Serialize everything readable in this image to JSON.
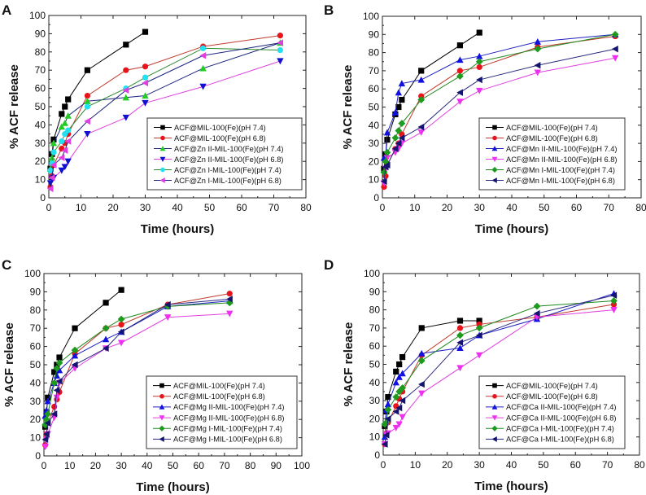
{
  "chart_data": [
    {
      "type": "line",
      "panel": "A",
      "xlabel": "Time (hours)",
      "ylabel": "% ACF release",
      "xlim": [
        0,
        80
      ],
      "ylim": [
        0,
        100
      ],
      "xticks": [
        0,
        10,
        20,
        30,
        40,
        50,
        60,
        70,
        80
      ],
      "yticks": [
        0,
        10,
        20,
        30,
        40,
        50,
        60,
        70,
        80,
        90,
        100
      ],
      "legend_position": "bottom-right",
      "series": [
        {
          "name": "ACF@MIL-100(Fe)(pH 7.4)",
          "marker": "square",
          "marker_color": "#000000",
          "line_color": "#000000",
          "x": [
            0.5,
            1,
            1.5,
            4,
            5,
            6,
            12,
            24,
            30
          ],
          "y": [
            16,
            24,
            32,
            46,
            50,
            54,
            70,
            84,
            91
          ]
        },
        {
          "name": "ACF@MIL-100(Fe)(pH 6.8)",
          "marker": "circle",
          "marker_color": "#e8141c",
          "line_color": "#c0392b",
          "x": [
            0.5,
            1,
            1.5,
            4,
            5,
            6,
            12,
            24,
            30,
            48,
            72
          ],
          "y": [
            6,
            12,
            18,
            27,
            30,
            35,
            56,
            70,
            72,
            83,
            89
          ]
        },
        {
          "name": "ACF@Zn II-MIL-100(Fe)(pH 7.4)",
          "marker": "triangle-up",
          "marker_color": "#22cc22",
          "line_color": "#1a237e",
          "x": [
            0.5,
            1,
            1.5,
            4,
            5,
            6,
            12,
            24,
            30,
            48,
            72
          ],
          "y": [
            16,
            22,
            30,
            39,
            41,
            45,
            53,
            55,
            56,
            71,
            85
          ]
        },
        {
          "name": "ACF@Zn II-MIL-100(Fe)(pH 6.8)",
          "marker": "triangle-down",
          "marker_color": "#1010d0",
          "line_color": "#e040e0",
          "x": [
            0.5,
            1,
            1.5,
            4,
            5,
            6,
            12,
            24,
            30,
            48,
            72
          ],
          "y": [
            8,
            10,
            11,
            15,
            17,
            20,
            35,
            44,
            52,
            61,
            75
          ]
        },
        {
          "name": "ACF@Zn I-MIL-100(Fe)(pH 7.4)",
          "marker": "circle",
          "marker_color": "#22e0f0",
          "line_color": "#2e8b2e",
          "x": [
            0.5,
            1,
            1.5,
            4,
            5,
            6,
            12,
            24,
            30,
            48,
            72
          ],
          "y": [
            15,
            19,
            25,
            31,
            35,
            37,
            50,
            60,
            66,
            82,
            81
          ]
        },
        {
          "name": "ACF@Zn I-MIL-100(Fe)(pH 6.8)",
          "marker": "triangle-left",
          "marker_color": "#e040e0",
          "line_color": "#1a237e",
          "x": [
            0.5,
            1,
            1.5,
            4,
            5,
            6,
            12,
            24,
            30,
            48,
            72
          ],
          "y": [
            5,
            11,
            18,
            22,
            26,
            31,
            42,
            59,
            63,
            78,
            85
          ]
        }
      ]
    },
    {
      "type": "line",
      "panel": "B",
      "xlabel": "Time (hours)",
      "ylabel": "% ACF release",
      "xlim": [
        0,
        80
      ],
      "ylim": [
        0,
        100
      ],
      "xticks": [
        0,
        10,
        20,
        30,
        40,
        50,
        60,
        70,
        80
      ],
      "yticks": [
        0,
        10,
        20,
        30,
        40,
        50,
        60,
        70,
        80,
        90,
        100
      ],
      "legend_position": "bottom-right",
      "series": [
        {
          "name": "ACF@MIL-100(Fe)(pH 7.4)",
          "marker": "square",
          "marker_color": "#000000",
          "line_color": "#000000",
          "x": [
            0.5,
            1,
            1.5,
            4,
            5,
            6,
            12,
            24,
            30
          ],
          "y": [
            16,
            24,
            32,
            46,
            50,
            54,
            70,
            84,
            91
          ]
        },
        {
          "name": "ACF@MIL-100(Fe)(pH 6.8)",
          "marker": "circle",
          "marker_color": "#e8141c",
          "line_color": "#c0392b",
          "x": [
            0.5,
            1,
            1.5,
            4,
            5,
            6,
            12,
            24,
            30,
            48,
            72
          ],
          "y": [
            6,
            12,
            18,
            27,
            30,
            35,
            56,
            70,
            72,
            83,
            89
          ]
        },
        {
          "name": "ACF@Mn II-MIL-100(Fe)(pH 7.4)",
          "marker": "triangle-up",
          "marker_color": "#1010e0",
          "line_color": "#2020c0",
          "x": [
            0.5,
            1,
            1.5,
            4,
            5,
            6,
            12,
            24,
            30,
            48,
            72
          ],
          "y": [
            22,
            23,
            36,
            47,
            58,
            63,
            65,
            76,
            78,
            86,
            90
          ]
        },
        {
          "name": "ACF@Mn II-MIL-100(Fe)(pH 6.8)",
          "marker": "triangle-down",
          "marker_color": "#f030f0",
          "line_color": "#e040e0",
          "x": [
            0.5,
            1,
            1.5,
            4,
            5,
            6,
            12,
            24,
            30,
            48,
            72
          ],
          "y": [
            8,
            16,
            22,
            25,
            27,
            30,
            36,
            53,
            59,
            69,
            77
          ]
        },
        {
          "name": "ACF@Mn I-MIL-100(Fe)(pH 7.4)",
          "marker": "diamond",
          "marker_color": "#1e9a1e",
          "line_color": "#1e8a1e",
          "x": [
            0.5,
            1,
            1.5,
            4,
            5,
            6,
            12,
            24,
            30,
            48,
            72
          ],
          "y": [
            14,
            20,
            25,
            33,
            37,
            41,
            54,
            67,
            75,
            82,
            90
          ]
        },
        {
          "name": "ACF@Mn I-MIL-100(Fe)(pH 6.8)",
          "marker": "triangle-left",
          "marker_color": "#141470",
          "line_color": "#2a2a80",
          "x": [
            0.5,
            1,
            1.5,
            4,
            5,
            6,
            12,
            24,
            30,
            48,
            72
          ],
          "y": [
            9,
            17,
            18,
            27,
            30,
            33,
            39,
            58,
            65,
            73,
            82
          ]
        }
      ]
    },
    {
      "type": "line",
      "panel": "C",
      "xlabel": "Time (hours)",
      "ylabel": "% ACF release",
      "xlim": [
        0,
        100
      ],
      "ylim": [
        0,
        100
      ],
      "xticks": [
        0,
        10,
        20,
        30,
        40,
        50,
        60,
        70,
        80,
        90,
        100
      ],
      "yticks": [
        0,
        10,
        20,
        30,
        40,
        50,
        60,
        70,
        80,
        90,
        100
      ],
      "legend_position": "bottom-right",
      "series": [
        {
          "name": "ACF@MIL-100(Fe)(pH 7.4)",
          "marker": "square",
          "marker_color": "#000000",
          "line_color": "#000000",
          "x": [
            0.5,
            1,
            1.5,
            4,
            5,
            6,
            12,
            24,
            30
          ],
          "y": [
            16,
            24,
            32,
            46,
            50,
            54,
            70,
            84,
            91
          ]
        },
        {
          "name": "ACF@MIL-100(Fe)(pH 6.8)",
          "marker": "circle",
          "marker_color": "#e8141c",
          "line_color": "#c0392b",
          "x": [
            0.5,
            1,
            1.5,
            4,
            5,
            6,
            12,
            24,
            30,
            48,
            72
          ],
          "y": [
            6,
            12,
            18,
            27,
            31,
            35,
            56,
            70,
            72,
            83,
            89
          ]
        },
        {
          "name": "ACF@Mg II-MIL-100(Fe)(pH 7.4)",
          "marker": "triangle-up",
          "marker_color": "#1010e0",
          "line_color": "#2020c0",
          "x": [
            0.5,
            1,
            1.5,
            4,
            5,
            6,
            12,
            24,
            30,
            48,
            72
          ],
          "y": [
            22,
            25,
            30,
            40,
            44,
            47,
            55,
            64,
            68,
            82,
            85
          ]
        },
        {
          "name": "ACF@Mg II-MIL-100(Fe)(pH 6.8)",
          "marker": "triangle-down",
          "marker_color": "#f030f0",
          "line_color": "#e040e0",
          "x": [
            0.5,
            1,
            1.5,
            4,
            5,
            6,
            12,
            24,
            30,
            48,
            72
          ],
          "y": [
            5,
            9,
            12,
            21,
            32,
            40,
            48,
            59,
            62,
            76,
            78
          ]
        },
        {
          "name": "ACF@Mg I-MIL-100(Fe)(pH 7.4)",
          "marker": "diamond",
          "marker_color": "#1e9a1e",
          "line_color": "#1e8a1e",
          "x": [
            0.5,
            1,
            1.5,
            4,
            5,
            6,
            12,
            24,
            30,
            48,
            72
          ],
          "y": [
            17,
            20,
            23,
            40,
            48,
            51,
            58,
            70,
            75,
            82,
            84
          ]
        },
        {
          "name": "ACF@Mg I-MIL-100(Fe)(pH 6.8)",
          "marker": "triangle-left",
          "marker_color": "#141470",
          "line_color": "#2a2a80",
          "x": [
            0.5,
            1,
            1.5,
            4,
            5,
            6,
            12,
            24,
            30,
            48,
            72
          ],
          "y": [
            9,
            12,
            18,
            23,
            36,
            41,
            50,
            59,
            68,
            83,
            86
          ]
        }
      ]
    },
    {
      "type": "line",
      "panel": "D",
      "xlabel": "Time (hours)",
      "ylabel": "% ACF release",
      "xlim": [
        0,
        80
      ],
      "ylim": [
        0,
        100
      ],
      "xticks": [
        0,
        10,
        20,
        30,
        40,
        50,
        60,
        70,
        80
      ],
      "yticks": [
        0,
        10,
        20,
        30,
        40,
        50,
        60,
        70,
        80,
        90,
        100
      ],
      "legend_position": "bottom-right",
      "series": [
        {
          "name": "ACF@MIL-100(Fe)(pH 7.4)",
          "marker": "square",
          "marker_color": "#000000",
          "line_color": "#000000",
          "x": [
            0.5,
            1,
            1.5,
            4,
            5,
            6,
            12,
            24,
            30
          ],
          "y": [
            16,
            24,
            32,
            46,
            50,
            54,
            70,
            74,
            74
          ]
        },
        {
          "name": "ACF@MIL-100(Fe)(pH 6.8)",
          "marker": "circle",
          "marker_color": "#e8141c",
          "line_color": "#c0392b",
          "x": [
            0.5,
            1,
            1.5,
            4,
            5,
            6,
            12,
            24,
            30,
            48,
            72
          ],
          "y": [
            6,
            12,
            18,
            27,
            31,
            35,
            55,
            70,
            72,
            76,
            83
          ]
        },
        {
          "name": "ACF@Ca II-MIL-100(Fe)(pH 7.4)",
          "marker": "triangle-up",
          "marker_color": "#1010e0",
          "line_color": "#2020c0",
          "x": [
            0.5,
            1,
            1.5,
            4,
            5,
            6,
            12,
            24,
            30,
            48,
            72
          ],
          "y": [
            10,
            25,
            28,
            40,
            43,
            45,
            56,
            59,
            66,
            75,
            89
          ]
        },
        {
          "name": "ACF@Ca II-MIL-100(Fe)(pH 6.8)",
          "marker": "triangle-down",
          "marker_color": "#f030f0",
          "line_color": "#e040e0",
          "x": [
            0.5,
            1,
            1.5,
            4,
            5,
            6,
            12,
            24,
            30,
            48,
            72
          ],
          "y": [
            6,
            11,
            12,
            15,
            17,
            21,
            34,
            48,
            55,
            76,
            80
          ]
        },
        {
          "name": "ACF@Ca I-MIL-100(Fe)(pH 7.4)",
          "marker": "diamond",
          "marker_color": "#1e9a1e",
          "line_color": "#1e8a1e",
          "x": [
            0.5,
            1,
            1.5,
            4,
            5,
            6,
            12,
            24,
            30,
            48,
            72
          ],
          "y": [
            17,
            18,
            25,
            32,
            35,
            37,
            52,
            66,
            70,
            82,
            85
          ]
        },
        {
          "name": "ACF@Ca I-MIL-100(Fe)(pH 6.8)",
          "marker": "triangle-left",
          "marker_color": "#141470",
          "line_color": "#2a2a80",
          "x": [
            0.5,
            1,
            1.5,
            4,
            5,
            6,
            12,
            24,
            30,
            48,
            72
          ],
          "y": [
            6,
            11,
            20,
            24,
            26,
            30,
            39,
            62,
            66,
            78,
            88
          ]
        }
      ]
    }
  ]
}
